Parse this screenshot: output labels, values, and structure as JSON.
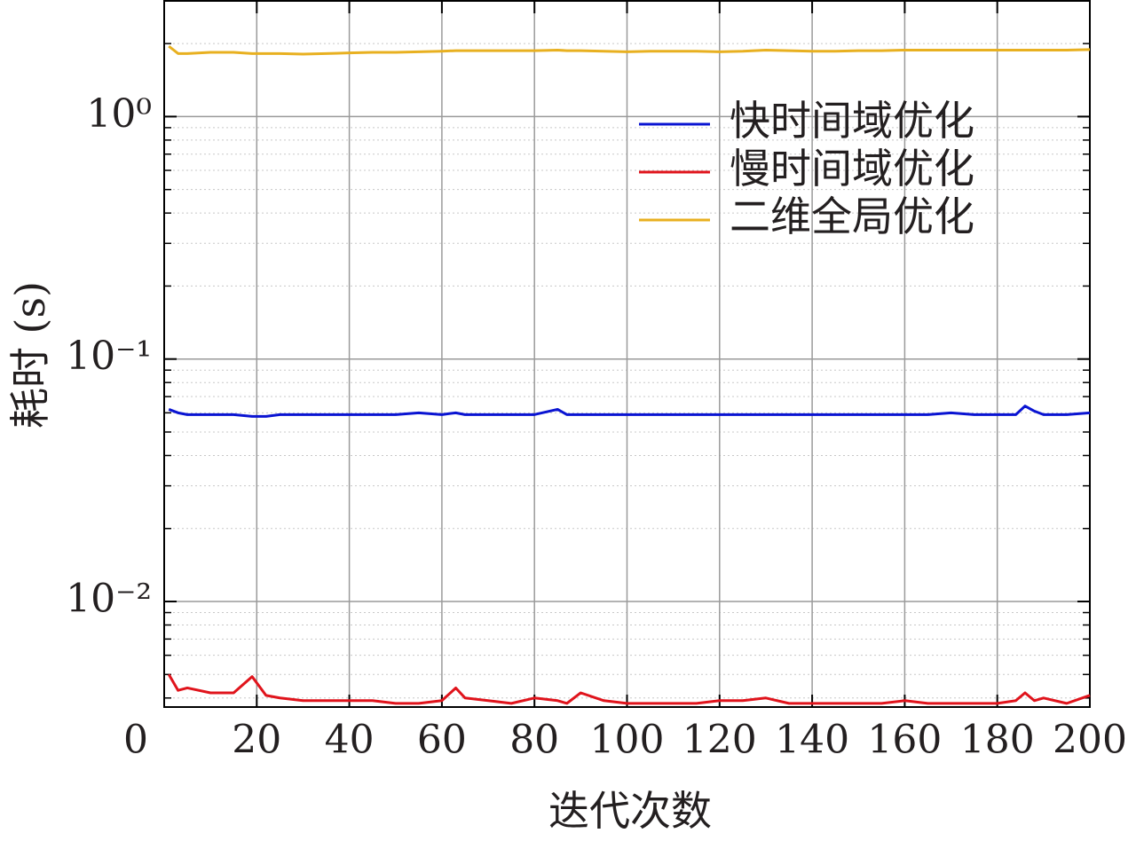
{
  "chart_data": {
    "type": "line",
    "x_label": "迭代次数",
    "y_label": "耗时 (s)",
    "xlim": [
      0,
      200
    ],
    "xticks": [
      0,
      20,
      40,
      60,
      80,
      100,
      120,
      140,
      160,
      180,
      200
    ],
    "ylim": [
      0.00367,
      3.0
    ],
    "log_y": true,
    "grid": true,
    "legend": "upper right",
    "yticks": [
      {
        "value": 0.01,
        "label": "10⁻²"
      },
      {
        "value": 0.1,
        "label": "10⁻¹"
      },
      {
        "value": 1,
        "label": "10⁰"
      }
    ],
    "yminorticks": [
      0.004,
      0.005,
      0.006,
      0.007,
      0.008,
      0.009,
      0.02,
      0.03,
      0.04,
      0.05,
      0.06,
      0.07,
      0.08,
      0.09,
      0.2,
      0.3,
      0.4,
      0.5,
      0.6,
      0.7,
      0.8,
      0.9,
      2,
      3
    ],
    "x": [
      1,
      3,
      5,
      10,
      15,
      19,
      22,
      25,
      30,
      35,
      40,
      45,
      50,
      55,
      60,
      63,
      65,
      70,
      75,
      80,
      85,
      87,
      90,
      95,
      100,
      105,
      110,
      115,
      120,
      125,
      130,
      135,
      140,
      145,
      150,
      155,
      160,
      165,
      170,
      175,
      180,
      184,
      186,
      188,
      190,
      195,
      200
    ],
    "series": [
      {
        "name": "快时间域优化",
        "color": "#0a14d2",
        "values": [
          0.062,
          0.06,
          0.059,
          0.059,
          0.059,
          0.058,
          0.058,
          0.059,
          0.059,
          0.059,
          0.059,
          0.059,
          0.059,
          0.06,
          0.059,
          0.06,
          0.059,
          0.059,
          0.059,
          0.059,
          0.062,
          0.059,
          0.059,
          0.059,
          0.059,
          0.059,
          0.059,
          0.059,
          0.059,
          0.059,
          0.059,
          0.059,
          0.059,
          0.059,
          0.059,
          0.059,
          0.059,
          0.059,
          0.06,
          0.059,
          0.059,
          0.059,
          0.064,
          0.061,
          0.059,
          0.059,
          0.06
        ]
      },
      {
        "name": "慢时间域优化",
        "color": "#e0141c",
        "values": [
          0.005,
          0.0043,
          0.0044,
          0.0042,
          0.0042,
          0.0049,
          0.0041,
          0.004,
          0.0039,
          0.0039,
          0.0039,
          0.0039,
          0.0038,
          0.0038,
          0.0039,
          0.0044,
          0.004,
          0.0039,
          0.0038,
          0.004,
          0.0039,
          0.0038,
          0.0042,
          0.0039,
          0.0038,
          0.0038,
          0.0038,
          0.0038,
          0.0039,
          0.0039,
          0.004,
          0.0038,
          0.0038,
          0.0038,
          0.0038,
          0.0038,
          0.0039,
          0.0038,
          0.0038,
          0.0038,
          0.0038,
          0.0039,
          0.0042,
          0.0039,
          0.004,
          0.0038,
          0.0041
        ]
      },
      {
        "name": "二维全局优化",
        "color": "#e8b020",
        "values": [
          1.95,
          1.82,
          1.82,
          1.84,
          1.84,
          1.82,
          1.82,
          1.82,
          1.81,
          1.82,
          1.83,
          1.84,
          1.84,
          1.85,
          1.86,
          1.87,
          1.87,
          1.87,
          1.87,
          1.87,
          1.88,
          1.87,
          1.87,
          1.86,
          1.85,
          1.86,
          1.86,
          1.86,
          1.85,
          1.86,
          1.88,
          1.87,
          1.86,
          1.86,
          1.87,
          1.87,
          1.88,
          1.88,
          1.88,
          1.88,
          1.88,
          1.88,
          1.88,
          1.88,
          1.88,
          1.88,
          1.89
        ]
      }
    ]
  }
}
